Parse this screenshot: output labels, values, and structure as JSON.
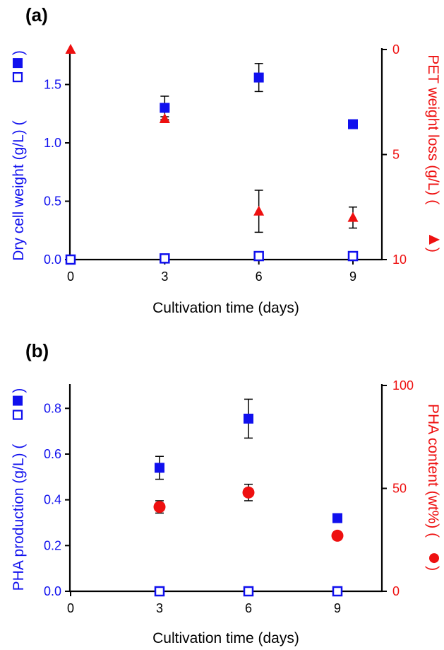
{
  "chart_data": [
    {
      "panel_label": "(a)",
      "type": "scatter",
      "xlabel": "Cultivation time (days)",
      "xlim": [
        0,
        9
      ],
      "x_ticks": [
        "0",
        "3",
        "6",
        "9"
      ],
      "y_left": {
        "label": "Dry cell weight (g/L) (□ ■)",
        "label_parts": [
          "Dry cell weight (g/L) (",
          ")"
        ],
        "color": "#1010ee",
        "lim": [
          0,
          1.8
        ],
        "ticks": [
          "0.0",
          "0.5",
          "1.0",
          "1.5"
        ]
      },
      "y_right": {
        "label": "PET weight loss (g/L) (▲)",
        "label_parts": [
          "PET weight loss (g/L) (",
          ")"
        ],
        "color": "#ee1010",
        "lim": [
          0,
          10
        ],
        "inverted": true,
        "ticks": [
          "0",
          "5",
          "10"
        ]
      },
      "series": [
        {
          "marker": "square-filled",
          "axis": "left",
          "color": "#1010ee",
          "x": [
            0,
            3,
            6,
            9
          ],
          "y": [
            0.0,
            1.3,
            1.56,
            1.16
          ],
          "err": [
            0,
            0.1,
            0.12,
            0
          ]
        },
        {
          "marker": "square-open",
          "axis": "left",
          "color": "#1010ee",
          "x": [
            0,
            3,
            6,
            9
          ],
          "y": [
            0.0,
            0.01,
            0.03,
            0.03
          ],
          "err": [
            0,
            0,
            0,
            0
          ]
        },
        {
          "marker": "triangle-filled",
          "axis": "right",
          "color": "#ee1010",
          "x": [
            0,
            3,
            6,
            9
          ],
          "y": [
            0.0,
            3.3,
            7.7,
            8.0
          ],
          "err": [
            0,
            0.1,
            1.0,
            0.5
          ]
        }
      ]
    },
    {
      "panel_label": "(b)",
      "type": "scatter",
      "xlabel": "Cultivation time (days)",
      "xlim": [
        0,
        10.5
      ],
      "x_ticks": [
        "0",
        "3",
        "6",
        "9"
      ],
      "y_left": {
        "label": "PHA production (g/L) (□ ■)",
        "label_parts": [
          "PHA production (g/L) (",
          ")"
        ],
        "color": "#1010ee",
        "lim": [
          0,
          0.9
        ],
        "ticks": [
          "0.0",
          "0.2",
          "0.4",
          "0.6",
          "0.8"
        ]
      },
      "y_right": {
        "label": "PHA content (wt%) (●)",
        "label_parts": [
          "PHA content (wt%) (",
          ")"
        ],
        "color": "#ee1010",
        "lim": [
          0,
          100
        ],
        "inverted": false,
        "ticks": [
          "0",
          "50",
          "100"
        ]
      },
      "series": [
        {
          "marker": "square-filled",
          "axis": "left",
          "color": "#1010ee",
          "x": [
            3,
            6,
            9
          ],
          "y": [
            0.54,
            0.755,
            0.32
          ],
          "err": [
            0.05,
            0.085,
            0
          ]
        },
        {
          "marker": "square-open",
          "axis": "left",
          "color": "#1010ee",
          "x": [
            3,
            6,
            9
          ],
          "y": [
            0.0,
            0.0,
            0.0
          ],
          "err": [
            0,
            0,
            0
          ]
        },
        {
          "marker": "circle-filled",
          "axis": "right",
          "color": "#ee1010",
          "x": [
            3,
            6,
            9
          ],
          "y": [
            41,
            48,
            27
          ],
          "err": [
            3,
            4,
            0
          ]
        }
      ]
    }
  ]
}
